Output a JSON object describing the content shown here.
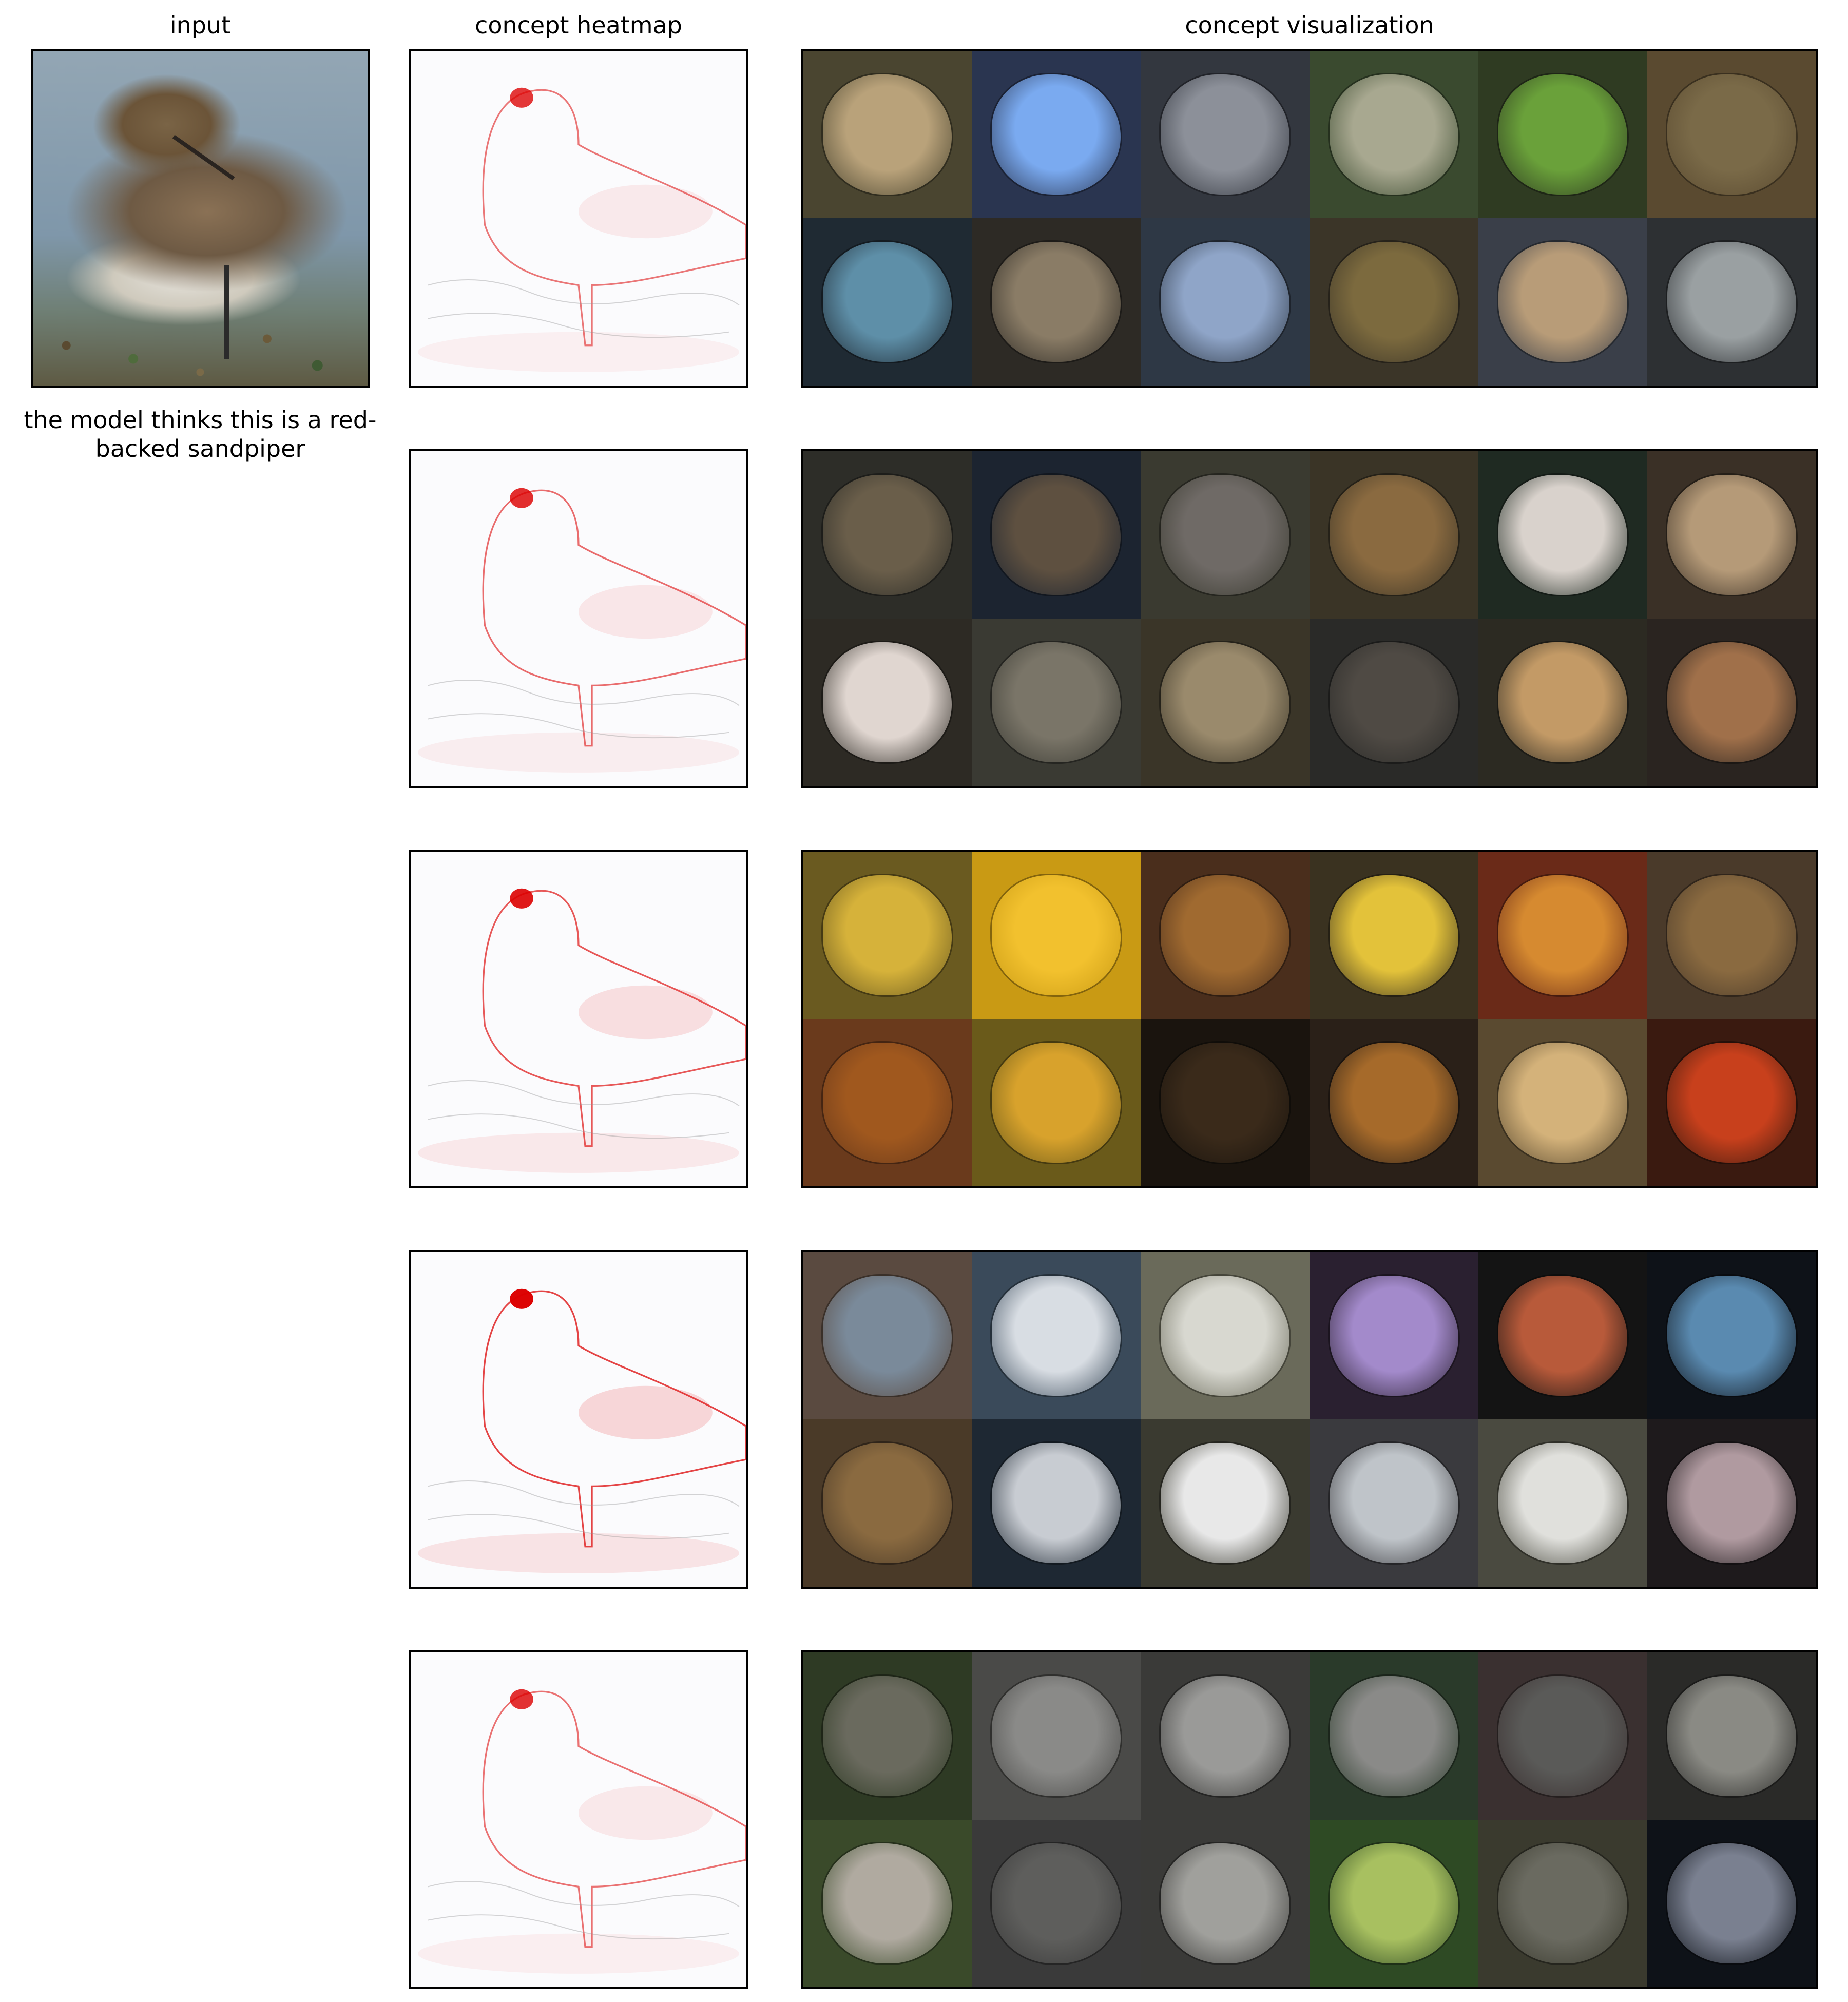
{
  "headers": {
    "input": "input",
    "heatmap": "concept heatmap",
    "visualization": "concept visualization"
  },
  "caption": "the model thinks this is a red-backed sandpiper",
  "concepts": [
    {
      "heat_intensity": 0.45,
      "tiles": [
        {
          "bg": "#4a4530",
          "fg": "#b9a27a"
        },
        {
          "bg": "#2a3550",
          "fg": "#7aaaf0"
        },
        {
          "bg": "#33373f",
          "fg": "#8c9099"
        },
        {
          "bg": "#3a4a2f",
          "fg": "#a8a890"
        },
        {
          "bg": "#2f3b22",
          "fg": "#6aa13a"
        },
        {
          "bg": "#5a4a30",
          "fg": "#7a6a48"
        },
        {
          "bg": "#1f2a33",
          "fg": "#5e8fa8"
        },
        {
          "bg": "#2d2a25",
          "fg": "#8a7c66"
        },
        {
          "bg": "#2e3845",
          "fg": "#8fa5c8"
        },
        {
          "bg": "#3b3528",
          "fg": "#7c6a3e"
        },
        {
          "bg": "#3a3f49",
          "fg": "#b89c78"
        },
        {
          "bg": "#2d3033",
          "fg": "#9aa0a2"
        }
      ]
    },
    {
      "heat_intensity": 0.55,
      "tiles": [
        {
          "bg": "#2d2d28",
          "fg": "#6a5e4a"
        },
        {
          "bg": "#1c2430",
          "fg": "#5e5040"
        },
        {
          "bg": "#3a3a30",
          "fg": "#6f6a66"
        },
        {
          "bg": "#3a3426",
          "fg": "#8a6a40"
        },
        {
          "bg": "#1f2a22",
          "fg": "#d9d2cc"
        },
        {
          "bg": "#3a3026",
          "fg": "#b59a78"
        },
        {
          "bg": "#2d2a24",
          "fg": "#e0d6d0"
        },
        {
          "bg": "#3a3a33",
          "fg": "#7a7568"
        },
        {
          "bg": "#3a3528",
          "fg": "#9a8a6c"
        },
        {
          "bg": "#2a2a28",
          "fg": "#4f4a44"
        },
        {
          "bg": "#2c2a22",
          "fg": "#c39a66"
        },
        {
          "bg": "#2a2420",
          "fg": "#a0704a"
        }
      ]
    },
    {
      "heat_intensity": 0.75,
      "tiles": [
        {
          "bg": "#6a5a20",
          "fg": "#d6b23a"
        },
        {
          "bg": "#c99a14",
          "fg": "#f2c12e"
        },
        {
          "bg": "#4a2e1c",
          "fg": "#a06a30"
        },
        {
          "bg": "#3a3220",
          "fg": "#e3c23a"
        },
        {
          "bg": "#6a2a18",
          "fg": "#d68a30"
        },
        {
          "bg": "#4a3a2a",
          "fg": "#8a6a40"
        },
        {
          "bg": "#6a3a1c",
          "fg": "#a0581e"
        },
        {
          "bg": "#6a5a1a",
          "fg": "#d8a22c"
        },
        {
          "bg": "#1a140e",
          "fg": "#3a2a1a"
        },
        {
          "bg": "#2a2018",
          "fg": "#a66a2a"
        },
        {
          "bg": "#5a4a30",
          "fg": "#d4b27a"
        },
        {
          "bg": "#3a1a10",
          "fg": "#c8401c"
        }
      ]
    },
    {
      "heat_intensity": 0.95,
      "tiles": [
        {
          "bg": "#5a4a40",
          "fg": "#7a8a9a"
        },
        {
          "bg": "#3a4a5a",
          "fg": "#d8dde3"
        },
        {
          "bg": "#6a6a5a",
          "fg": "#d8d8d0"
        },
        {
          "bg": "#2a2030",
          "fg": "#a38acb"
        },
        {
          "bg": "#141414",
          "fg": "#b85a3a"
        },
        {
          "bg": "#0e1218",
          "fg": "#5a8ab0"
        },
        {
          "bg": "#4a3a28",
          "fg": "#8a6a40"
        },
        {
          "bg": "#1e2833",
          "fg": "#c8ccd2"
        },
        {
          "bg": "#3a3a30",
          "fg": "#e8e8e8"
        },
        {
          "bg": "#3a3a3e",
          "fg": "#bfc4c9"
        },
        {
          "bg": "#4a4a40",
          "fg": "#e0e0dc"
        },
        {
          "bg": "#1e1a1c",
          "fg": "#b09aa0"
        }
      ]
    },
    {
      "heat_intensity": 0.5,
      "tiles": [
        {
          "bg": "#2e3a24",
          "fg": "#6a6a5e"
        },
        {
          "bg": "#4a4a48",
          "fg": "#8a8a88"
        },
        {
          "bg": "#3a3a38",
          "fg": "#9a9a98"
        },
        {
          "bg": "#2a3a2a",
          "fg": "#8a8a88"
        },
        {
          "bg": "#3a3030",
          "fg": "#5a5a58"
        },
        {
          "bg": "#2a2a28",
          "fg": "#8a8a84"
        },
        {
          "bg": "#3a4a2a",
          "fg": "#b0aaa0"
        },
        {
          "bg": "#3a3a3a",
          "fg": "#5e5e5c"
        },
        {
          "bg": "#3a3a38",
          "fg": "#a0a09c"
        },
        {
          "bg": "#2e4a24",
          "fg": "#a8c060"
        },
        {
          "bg": "#3a3a2e",
          "fg": "#6a6a60"
        },
        {
          "bg": "#0e1218",
          "fg": "#7a8090"
        }
      ]
    }
  ]
}
